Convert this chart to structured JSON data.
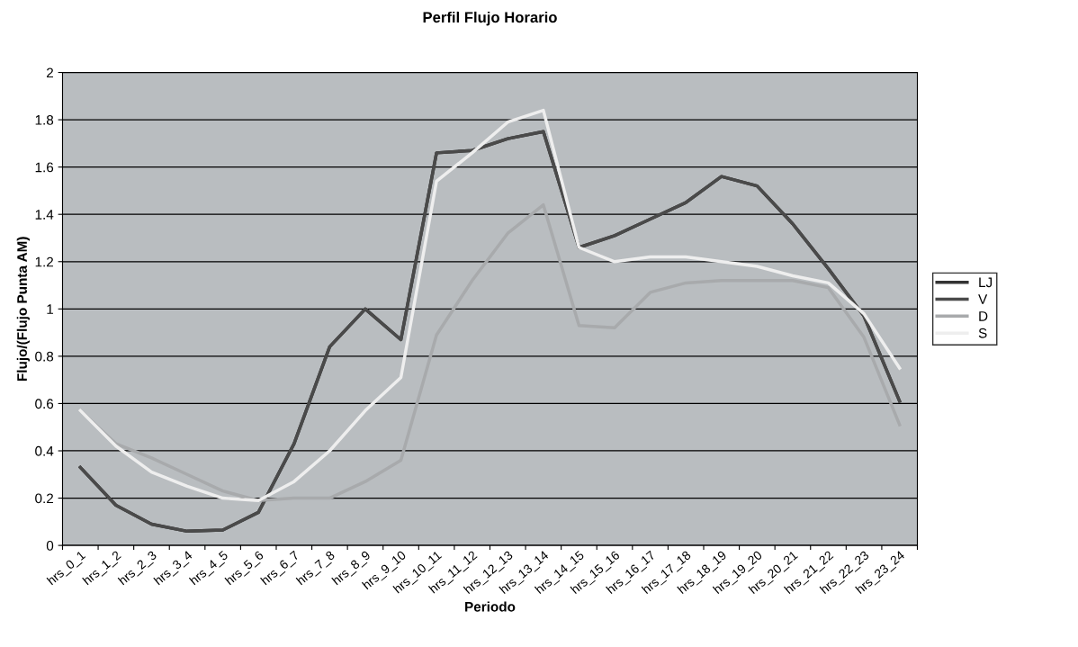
{
  "chart_data": {
    "type": "line",
    "title": "Perfil Flujo Horario",
    "xlabel": "Periodo",
    "ylabel": "Flujo/(Flujo Punta AM)",
    "categories": [
      "hrs_0_1",
      "hrs_1_2",
      "hrs_2_3",
      "hrs_3_4",
      "hrs_4_5",
      "hrs_5_6",
      "hrs_6_7",
      "hrs_7_8",
      "hrs_8_9",
      "hrs_9_10",
      "hrs_10_11",
      "hrs_11_12",
      "hrs_12_13",
      "hrs_13_14",
      "hrs_14_15",
      "hrs_15_16",
      "hrs_16_17",
      "hrs_17_18",
      "hrs_18_19",
      "hrs_19_20",
      "hrs_20_21",
      "hrs_21_22",
      "hrs_22_23",
      "hrs_23_24"
    ],
    "series": [
      {
        "name": "LJ",
        "color": "#333333",
        "values": [
          0.33,
          0.17,
          0.09,
          0.06,
          0.065,
          0.14,
          0.43,
          0.84,
          1.0,
          0.87,
          1.66,
          1.67,
          1.72,
          1.75,
          1.26,
          1.31,
          1.38,
          1.45,
          1.56,
          1.52,
          1.36,
          1.17,
          0.97,
          0.61
        ]
      },
      {
        "name": "V",
        "color": "#4a4a4a",
        "values": [
          0.33,
          0.17,
          0.09,
          0.06,
          0.065,
          0.14,
          0.43,
          0.84,
          1.0,
          0.87,
          1.66,
          1.67,
          1.72,
          1.75,
          1.26,
          1.31,
          1.38,
          1.45,
          1.56,
          1.52,
          1.36,
          1.17,
          0.97,
          0.61
        ]
      },
      {
        "name": "D",
        "color": "#a8aaac",
        "values": [
          0.57,
          0.43,
          0.37,
          0.3,
          0.23,
          0.19,
          0.2,
          0.2,
          0.27,
          0.36,
          0.89,
          1.12,
          1.32,
          1.44,
          0.93,
          0.92,
          1.07,
          1.11,
          1.12,
          1.12,
          1.12,
          1.09,
          0.88,
          0.51
        ]
      },
      {
        "name": "S",
        "color": "#eeeeee",
        "values": [
          0.57,
          0.42,
          0.31,
          0.25,
          0.2,
          0.19,
          0.27,
          0.4,
          0.57,
          0.71,
          1.54,
          1.66,
          1.79,
          1.84,
          1.26,
          1.2,
          1.22,
          1.22,
          1.2,
          1.18,
          1.14,
          1.11,
          0.98,
          0.75
        ]
      }
    ],
    "ylim": [
      0,
      2
    ],
    "yticks": [
      0,
      0.2,
      0.4,
      0.6,
      0.8,
      1,
      1.2,
      1.4,
      1.6,
      1.8,
      2
    ],
    "grid": "y",
    "legend": "right",
    "marker": "none",
    "line_style": "solid"
  }
}
